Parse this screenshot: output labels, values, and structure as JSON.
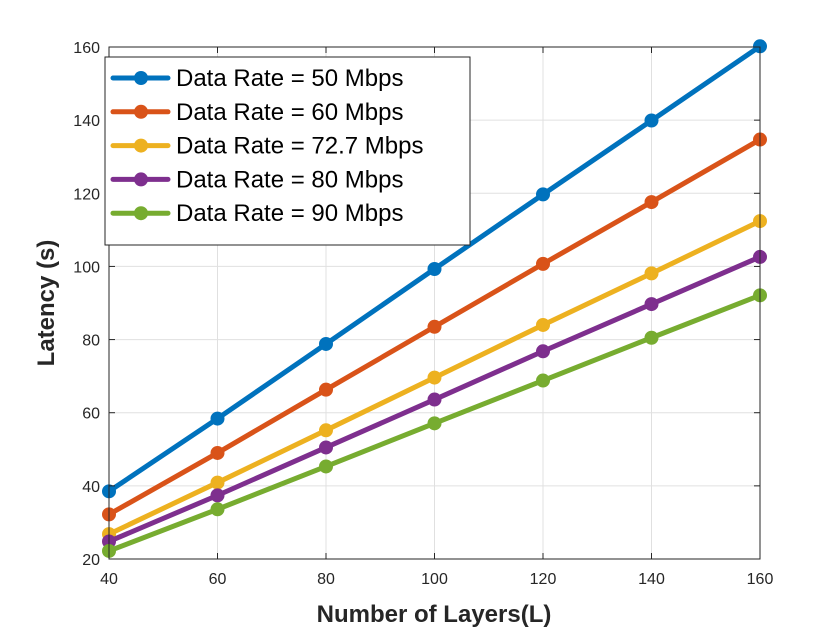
{
  "chart_data": {
    "type": "line",
    "title": "",
    "xlabel": "Number of Layers(L)",
    "ylabel": "Latency (s)",
    "x": [
      40,
      60,
      80,
      100,
      120,
      140,
      160
    ],
    "xlim": [
      40,
      160
    ],
    "ylim": [
      20,
      160
    ],
    "xticks": [
      "40",
      "60",
      "80",
      "100",
      "120",
      "140",
      "160"
    ],
    "yticks": [
      "20",
      "40",
      "60",
      "80",
      "100",
      "120",
      "140",
      "160"
    ],
    "grid": true,
    "legend_position": "top-left",
    "series": [
      {
        "name": "Data Rate = 50 Mbps",
        "color": "#0072BD",
        "values": [
          38.5,
          58.4,
          78.8,
          99.3,
          119.7,
          139.9,
          160.2
        ]
      },
      {
        "name": "Data Rate = 60 Mbps",
        "color": "#D95319",
        "values": [
          32.2,
          49.0,
          66.3,
          83.5,
          100.7,
          117.6,
          134.7
        ]
      },
      {
        "name": "Data Rate = 72.7 Mbps",
        "color": "#EDB120",
        "values": [
          26.8,
          40.9,
          55.2,
          69.6,
          84.0,
          98.1,
          112.4
        ]
      },
      {
        "name": "Data Rate = 80 Mbps",
        "color": "#7E2F8E",
        "values": [
          24.8,
          37.4,
          50.5,
          63.6,
          76.8,
          89.7,
          102.6
        ]
      },
      {
        "name": "Data Rate = 90 Mbps",
        "color": "#77AC30",
        "values": [
          22.2,
          33.6,
          45.3,
          57.1,
          68.8,
          80.5,
          92.1
        ]
      }
    ]
  }
}
